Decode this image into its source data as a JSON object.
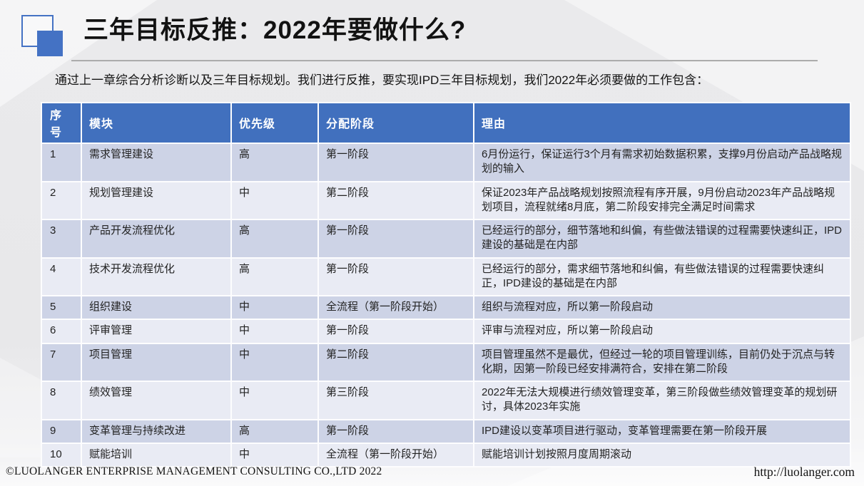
{
  "page": {
    "title": "三年目标反推：2022年要做什么?",
    "intro": "通过上一章综合分析诊断以及三年目标规划。我们进行反推，要实现IPD三年目标规划，我们2022年必须要做的工作包含：",
    "footer": {
      "company": "©LUOLANGER  ENTERPRISE MANAGEMENT CONSULTING CO.,LTD  2022",
      "website": "http://luolanger.com"
    }
  },
  "colors": {
    "accent": "#4472C4",
    "header_bg": "#4170BE",
    "row_dark": "#CDD3E6",
    "row_light": "#E9EBF4"
  },
  "table": {
    "headers": [
      "序号",
      "模块",
      "优先级",
      "分配阶段",
      "理由"
    ],
    "rows": [
      {
        "no": "1",
        "module": "需求管理建设",
        "priority": "高",
        "phase": "第一阶段",
        "reason": "6月份运行，保证运行3个月有需求初始数据积累，支撑9月份启动产品战略规划的输入"
      },
      {
        "no": "2",
        "module": "规划管理建设",
        "priority": "中",
        "phase": "第二阶段",
        "reason": "保证2023年产品战略规划按照流程有序开展，9月份启动2023年产品战略规划项目，流程就绪8月底，第二阶段安排完全满足时间需求"
      },
      {
        "no": "3",
        "module": "产品开发流程优化",
        "priority": "高",
        "phase": "第一阶段",
        "reason": "已经运行的部分，细节落地和纠偏，有些做法错误的过程需要快速纠正，IPD建设的基础是在内部"
      },
      {
        "no": "4",
        "module": "技术开发流程优化",
        "priority": "高",
        "phase": "第一阶段",
        "reason": "已经运行的部分，需求细节落地和纠偏，有些做法错误的过程需要快速纠正，IPD建设的基础是在内部"
      },
      {
        "no": "5",
        "module": "组织建设",
        "priority": "中",
        "phase": "全流程（第一阶段开始）",
        "reason": "组织与流程对应，所以第一阶段启动"
      },
      {
        "no": "6",
        "module": "评审管理",
        "priority": "中",
        "phase": "第一阶段",
        "reason": "评审与流程对应，所以第一阶段启动"
      },
      {
        "no": "7",
        "module": "项目管理",
        "priority": "中",
        "phase": "第二阶段",
        "reason": "项目管理虽然不是最优，但经过一轮的项目管理训练，目前仍处于沉点与转化期，因第一阶段已经安排满符合，安排在第二阶段"
      },
      {
        "no": "8",
        "module": "绩效管理",
        "priority": "中",
        "phase": "第三阶段",
        "reason": "2022年无法大规模进行绩效管理变革，第三阶段做些绩效管理变革的规划研讨，具体2023年实施"
      },
      {
        "no": "9",
        "module": "变革管理与持续改进",
        "priority": "高",
        "phase": "第一阶段",
        "reason": "IPD建设以变革项目进行驱动，变革管理需要在第一阶段开展"
      },
      {
        "no": "10",
        "module": "赋能培训",
        "priority": "中",
        "phase": "全流程（第一阶段开始）",
        "reason": "赋能培训计划按照月度周期滚动"
      }
    ]
  }
}
